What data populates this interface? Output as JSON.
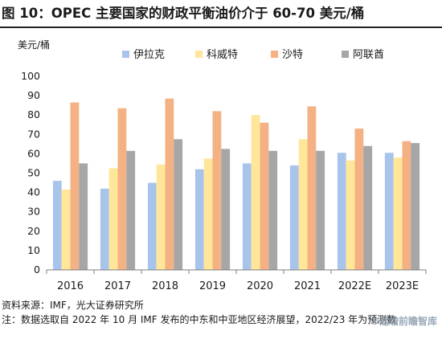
{
  "header": {
    "title": "图 10：OPEC 主要国家的财政平衡油价介于 60-70 美元/桶"
  },
  "footer": {
    "source": "资料来源：IMF，光大证券研究所",
    "note": "注：数据选取自 2022 年 10 月 IMF 发布的中东和中亚地区经济展望，2022/23 年为预测数",
    "watermark": "©远瞻前瞻智库"
  },
  "chart_data": {
    "type": "bar",
    "title": "",
    "xlabel": "",
    "ylabel": "美元/桶",
    "ylim": [
      0,
      100
    ],
    "yticks": [
      0,
      10,
      20,
      30,
      40,
      50,
      60,
      70,
      80,
      90,
      100
    ],
    "grid": false,
    "legend_position": "top",
    "categories": [
      "2016",
      "2017",
      "2018",
      "2019",
      "2020",
      "2021",
      "2022E",
      "2023E"
    ],
    "series": [
      {
        "name": "伊拉克",
        "color": "#a9c4eb",
        "values": [
          46,
          42,
          45,
          52,
          55,
          54,
          60.5,
          60.5
        ]
      },
      {
        "name": "科威特",
        "color": "#ffe699",
        "values": [
          41.5,
          52.5,
          54.5,
          57.5,
          80,
          67.5,
          56.5,
          58
        ]
      },
      {
        "name": "沙特",
        "color": "#f4b183",
        "values": [
          86.5,
          83.5,
          88.5,
          82,
          76,
          84.5,
          73,
          66.5
        ]
      },
      {
        "name": "阿联酋",
        "color": "#a6a6a6",
        "values": [
          55,
          61.5,
          67.5,
          62.5,
          61.5,
          61.5,
          64,
          65.5
        ]
      }
    ]
  }
}
